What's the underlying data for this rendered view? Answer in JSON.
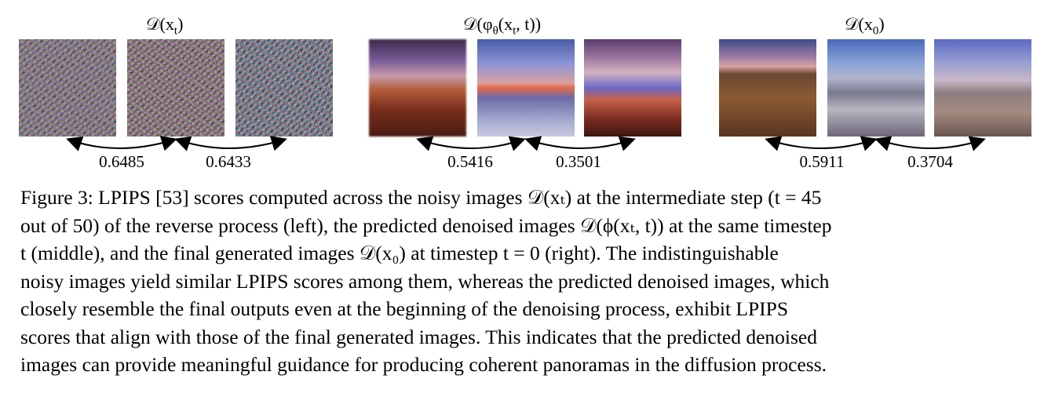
{
  "figure": {
    "groups": [
      {
        "title_math": "𝒟(x",
        "title_sub": "t",
        "title_tail": ")",
        "scores": [
          "0.6485",
          "0.6433"
        ]
      },
      {
        "title_math": "𝒟(φ",
        "title_sub": "θ",
        "title_tail": "(x",
        "title_sub2": "t",
        "title_tail2": ", t))",
        "scores": [
          "0.5416",
          "0.3501"
        ]
      },
      {
        "title_math": "𝒟(x",
        "title_sub": "0",
        "title_tail": ")",
        "scores": [
          "0.5911",
          "0.3704"
        ]
      }
    ],
    "caption_lines": [
      "Figure 3:  LPIPS [53] scores computed across the noisy images 𝒟(xₜ) at the intermediate step (t = 45",
      "out of 50) of the reverse process (left), the predicted denoised images 𝒟(ϕ(xₜ, t)) at the same timestep",
      "t (middle), and the final generated images 𝒟(x₀) at timestep t = 0 (right). The indistinguishable",
      "noisy images yield similar LPIPS scores among them, whereas the predicted denoised images, which",
      "closely resemble the final outputs even at the beginning of the denoising process, exhibit LPIPS",
      "scores that align with those of the final generated images. This indicates that the predicted denoised",
      "images can provide meaningful guidance for producing coherent panoramas in the diffusion process."
    ]
  }
}
